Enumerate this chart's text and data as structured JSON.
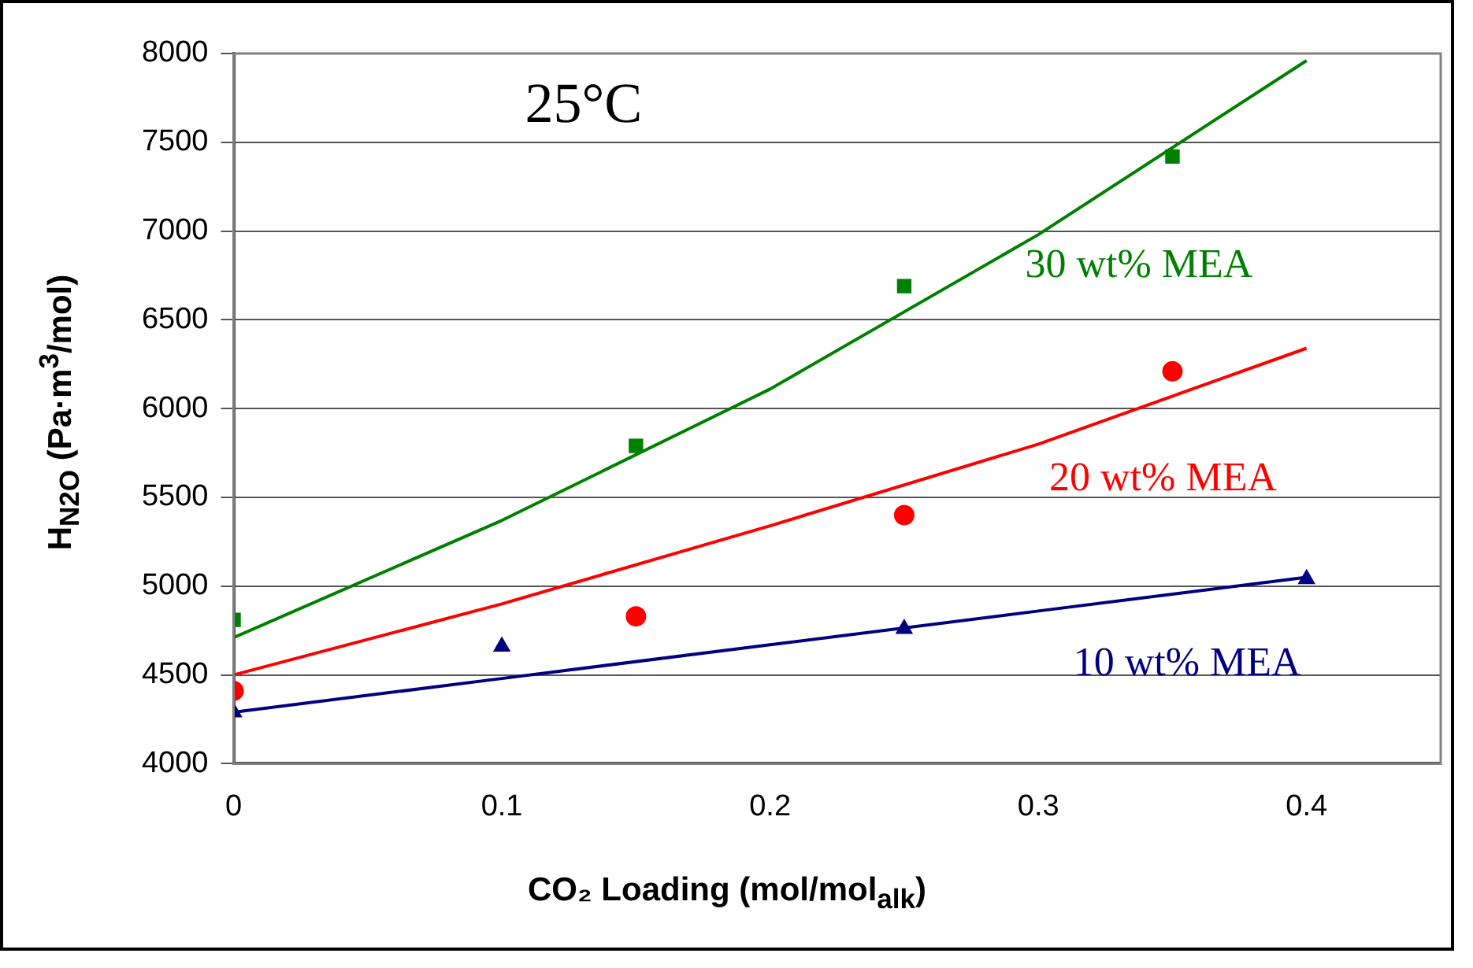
{
  "chart_data": {
    "type": "scatter",
    "xlabel": "CO₂ Loading (mol/mol$_{alk}$)",
    "ylabel": "H$_{N2O}$ (Pa·m$^{3}$/mol)",
    "annotations": [
      "25°C"
    ],
    "x": [
      0,
      0.1,
      0.15,
      0.25,
      0.35,
      0.4
    ],
    "series": [
      {
        "name": "30 wt% MEA",
        "marker": "square",
        "color": "#008000",
        "values": [
          4810,
          null,
          5790,
          6690,
          7420,
          null
        ]
      },
      {
        "name": "20 wt% MEA",
        "marker": "circle",
        "color": "#ff0000",
        "values": [
          4410,
          null,
          4830,
          5400,
          6210,
          null
        ]
      },
      {
        "name": "10 wt% MEA",
        "marker": "triangle",
        "color": "#000080",
        "values": [
          4290,
          4660,
          null,
          4760,
          null,
          5040
        ]
      },
      {
        "type": "line",
        "marker": "none",
        "color": "#008000",
        "x": [
          0,
          0.1,
          0.2,
          0.3,
          0.4
        ],
        "values": [
          4710,
          5370,
          6110,
          6980,
          7960
        ]
      },
      {
        "type": "line",
        "marker": "none",
        "color": "#ff0000",
        "x": [
          0,
          0.1,
          0.2,
          0.3,
          0.4
        ],
        "values": [
          4500,
          4900,
          5340,
          5800,
          6340
        ]
      },
      {
        "type": "line",
        "marker": "none",
        "color": "#000080",
        "x": [
          0,
          0.1,
          0.2,
          0.3,
          0.4
        ],
        "values": [
          4290,
          4480,
          4670,
          4860,
          5050
        ]
      }
    ],
    "xlim": [
      0,
      0.45
    ],
    "xticks": [
      0,
      0.1,
      0.2,
      0.3,
      0.4
    ],
    "ylim": [
      4000,
      8000
    ],
    "yticks": [
      4000,
      4500,
      5000,
      5500,
      6000,
      6500,
      7000,
      7500,
      8000
    ],
    "grid": "y",
    "legend": false
  }
}
